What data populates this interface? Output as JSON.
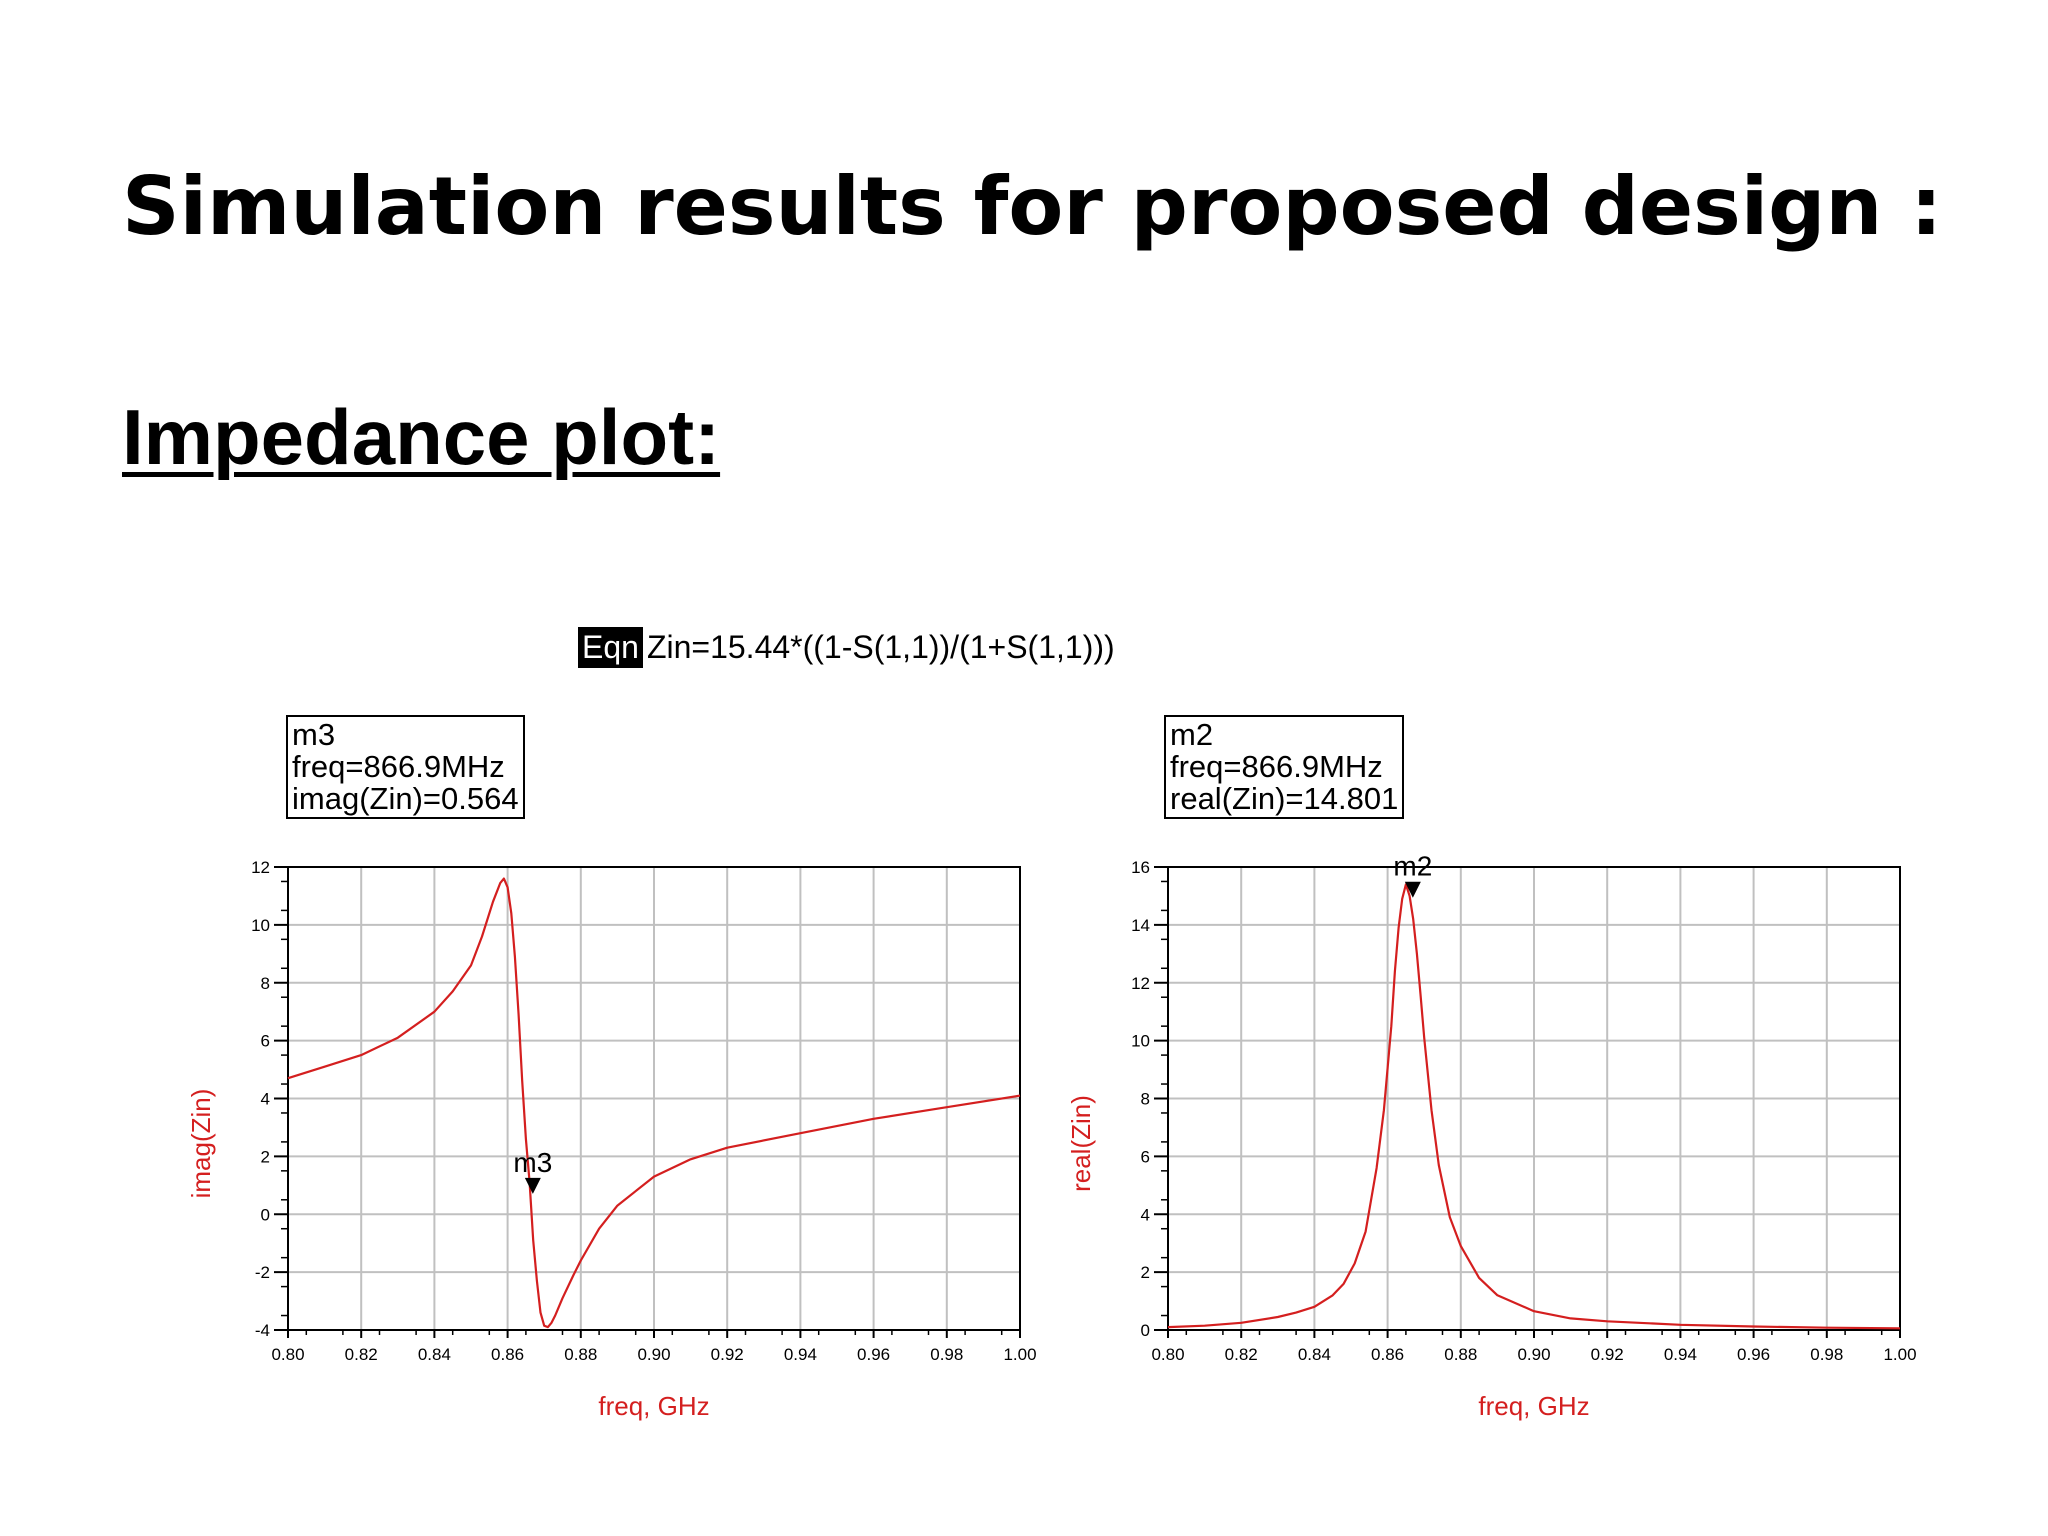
{
  "slide": {
    "title": "Simulation results for proposed design :",
    "subtitle": "Impedance plot:"
  },
  "equation": {
    "tag": "Eqn",
    "text": "Zin=15.44*((1-S(1,1))/(1+S(1,1)))"
  },
  "colors": {
    "trace": "#d41f1f",
    "grid": "#c0c0c0",
    "axis_label": "#d41f1f"
  },
  "chart_data": [
    {
      "type": "line",
      "xlabel": "freq, GHz",
      "ylabel": "imag(Zin)",
      "xlim": [
        0.8,
        1.0
      ],
      "ylim": [
        -4,
        12
      ],
      "x_ticks": [
        "0.80",
        "0.82",
        "0.84",
        "0.86",
        "0.88",
        "0.90",
        "0.92",
        "0.94",
        "0.96",
        "0.98",
        "1.00"
      ],
      "y_ticks": [
        "-4",
        "-2",
        "0",
        "2",
        "4",
        "6",
        "8",
        "10",
        "12"
      ],
      "grid": true,
      "series": [
        {
          "x": [
            0.8,
            0.81,
            0.82,
            0.83,
            0.84,
            0.845,
            0.85,
            0.853,
            0.856,
            0.858,
            0.859,
            0.86,
            0.861,
            0.862,
            0.863,
            0.864,
            0.865,
            0.866,
            0.867,
            0.868,
            0.869,
            0.87,
            0.871,
            0.872,
            0.873,
            0.875,
            0.878,
            0.88,
            0.885,
            0.89,
            0.9,
            0.91,
            0.92,
            0.94,
            0.96,
            0.98,
            1.0
          ],
          "y": [
            4.7,
            5.1,
            5.5,
            6.1,
            7.0,
            7.7,
            8.6,
            9.6,
            10.8,
            11.45,
            11.6,
            11.3,
            10.4,
            8.9,
            6.9,
            4.6,
            2.6,
            1.1,
            -0.9,
            -2.3,
            -3.4,
            -3.85,
            -3.9,
            -3.75,
            -3.5,
            -2.9,
            -2.1,
            -1.6,
            -0.5,
            0.3,
            1.3,
            1.9,
            2.3,
            2.8,
            3.3,
            3.7,
            4.1
          ]
        }
      ],
      "marker": {
        "id": "m3",
        "x": 0.8669,
        "y": 0.564,
        "readout": [
          "m3",
          "freq=866.9MHz",
          "imag(Zin)=0.564"
        ]
      }
    },
    {
      "type": "line",
      "xlabel": "freq, GHz",
      "ylabel": "real(Zin)",
      "xlim": [
        0.8,
        1.0
      ],
      "ylim": [
        0,
        16
      ],
      "x_ticks": [
        "0.80",
        "0.82",
        "0.84",
        "0.86",
        "0.88",
        "0.90",
        "0.92",
        "0.94",
        "0.96",
        "0.98",
        "1.00"
      ],
      "y_ticks": [
        "0",
        "2",
        "4",
        "6",
        "8",
        "10",
        "12",
        "14",
        "16"
      ],
      "grid": true,
      "series": [
        {
          "x": [
            0.8,
            0.81,
            0.82,
            0.83,
            0.835,
            0.84,
            0.845,
            0.848,
            0.851,
            0.854,
            0.857,
            0.859,
            0.861,
            0.862,
            0.863,
            0.864,
            0.865,
            0.866,
            0.867,
            0.868,
            0.869,
            0.87,
            0.872,
            0.874,
            0.877,
            0.88,
            0.885,
            0.89,
            0.9,
            0.91,
            0.92,
            0.94,
            0.96,
            0.98,
            1.0
          ],
          "y": [
            0.1,
            0.15,
            0.25,
            0.45,
            0.6,
            0.8,
            1.2,
            1.6,
            2.3,
            3.4,
            5.6,
            7.6,
            10.5,
            12.4,
            13.9,
            14.9,
            15.4,
            15.0,
            14.2,
            13.0,
            11.6,
            10.1,
            7.6,
            5.7,
            3.9,
            2.9,
            1.8,
            1.2,
            0.65,
            0.4,
            0.3,
            0.18,
            0.12,
            0.08,
            0.06
          ]
        }
      ],
      "marker": {
        "id": "m2",
        "x": 0.8669,
        "y": 14.801,
        "readout": [
          "m2",
          "freq=866.9MHz",
          "real(Zin)=14.801"
        ]
      }
    }
  ]
}
